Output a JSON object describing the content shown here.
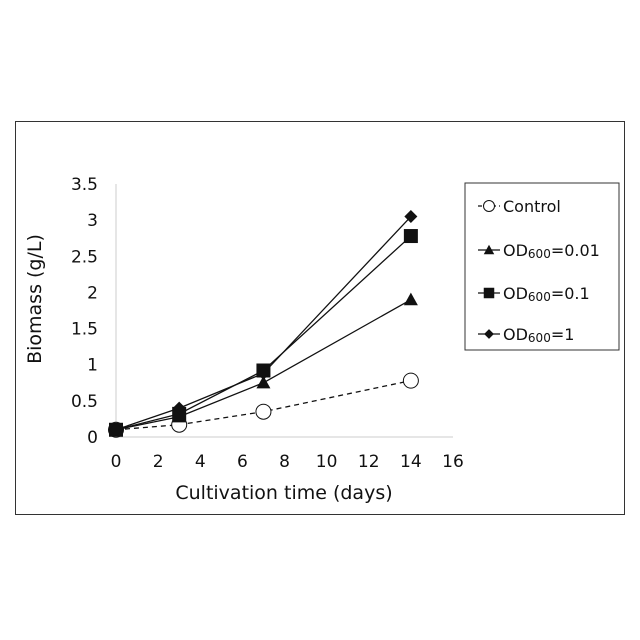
{
  "chart_data": {
    "type": "line",
    "xlabel": "Cultivation time (days)",
    "ylabel": "Biomass (g/L)",
    "xlim": [
      0,
      16
    ],
    "ylim": [
      0,
      3.5
    ],
    "xticks": [
      "0",
      "2",
      "4",
      "6",
      "8",
      "10",
      "12",
      "14",
      "16"
    ],
    "yticks": [
      "0",
      "0.5",
      "1",
      "1.5",
      "2",
      "2.5",
      "3",
      "3.5"
    ],
    "grid": false,
    "legend_position": "right",
    "series": [
      {
        "name": "Control",
        "marker": "open-circle",
        "line": "dashed",
        "x": [
          0,
          3,
          7,
          14
        ],
        "y": [
          0.1,
          0.17,
          0.35,
          0.78
        ]
      },
      {
        "name": "OD600=0.01",
        "name_parts": [
          "OD",
          "600",
          "=0.01"
        ],
        "marker": "triangle",
        "line": "solid",
        "x": [
          0,
          3,
          7,
          14
        ],
        "y": [
          0.1,
          0.28,
          0.75,
          1.9
        ]
      },
      {
        "name": "OD600=0.1",
        "name_parts": [
          "OD",
          "600",
          "=0.1"
        ],
        "marker": "square",
        "line": "solid",
        "x": [
          0,
          3,
          7,
          14
        ],
        "y": [
          0.1,
          0.32,
          0.92,
          2.78
        ]
      },
      {
        "name": "OD600=1",
        "name_parts": [
          "OD",
          "600",
          "=1"
        ],
        "marker": "diamond",
        "line": "solid",
        "x": [
          0,
          3,
          7,
          14
        ],
        "y": [
          0.1,
          0.4,
          0.88,
          3.05
        ]
      }
    ]
  }
}
